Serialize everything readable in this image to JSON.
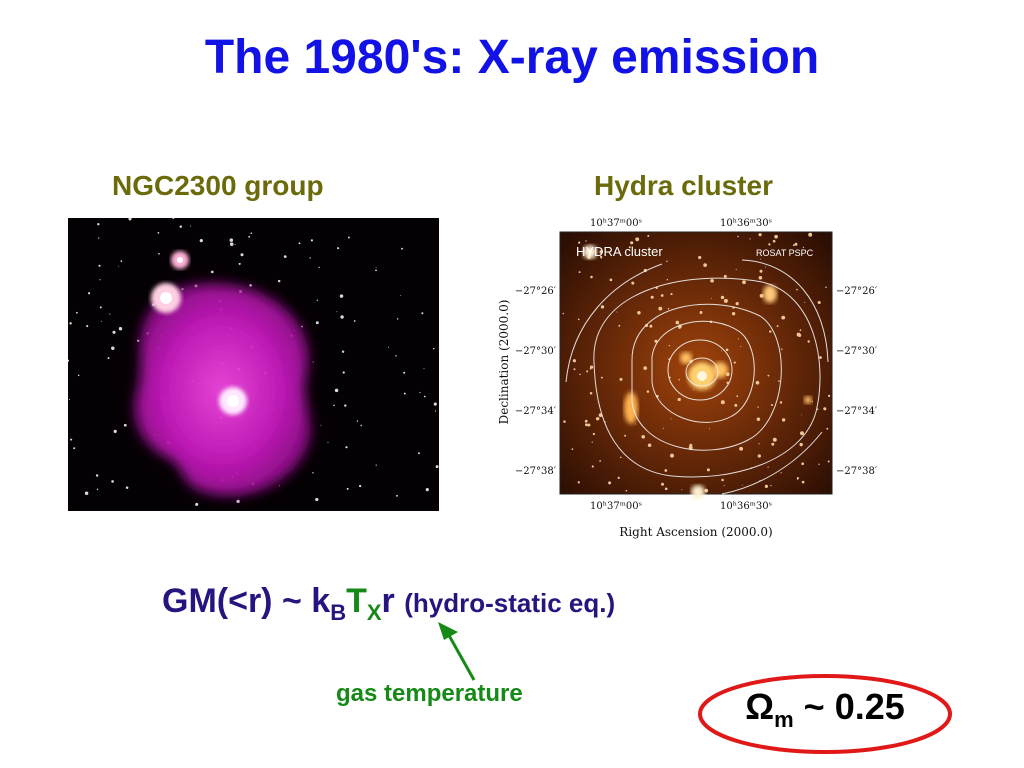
{
  "slide": {
    "title": "The 1980's: X-ray emission",
    "left_caption": "NGC2300 group",
    "right_caption": "Hydra cluster",
    "hydra_plot": {
      "inner_label_left": "HYDRA cluster",
      "inner_label_right": "ROSAT PSPC",
      "ra_ticks": [
        "10ʰ37ᵐ00ˢ",
        "10ʰ36ᵐ30ˢ"
      ],
      "dec_ticks": [
        "−27°26′",
        "−27°30′",
        "−27°34′",
        "−27°38′"
      ],
      "x_axis_label": "Right Ascension (2000.0)",
      "y_axis_label": "Declination (2000.0)"
    },
    "formula": {
      "lhs": "GM(<r)",
      "tilde": "~",
      "k": "k",
      "k_sub": "B",
      "t": "T",
      "t_sub": "X",
      "r": "r",
      "note": "(hydro-static eq.)"
    },
    "gas_label": "gas temperature",
    "omega": {
      "symbol": "Ω",
      "sub": "m",
      "tilde": "~",
      "value": "0.25"
    }
  }
}
